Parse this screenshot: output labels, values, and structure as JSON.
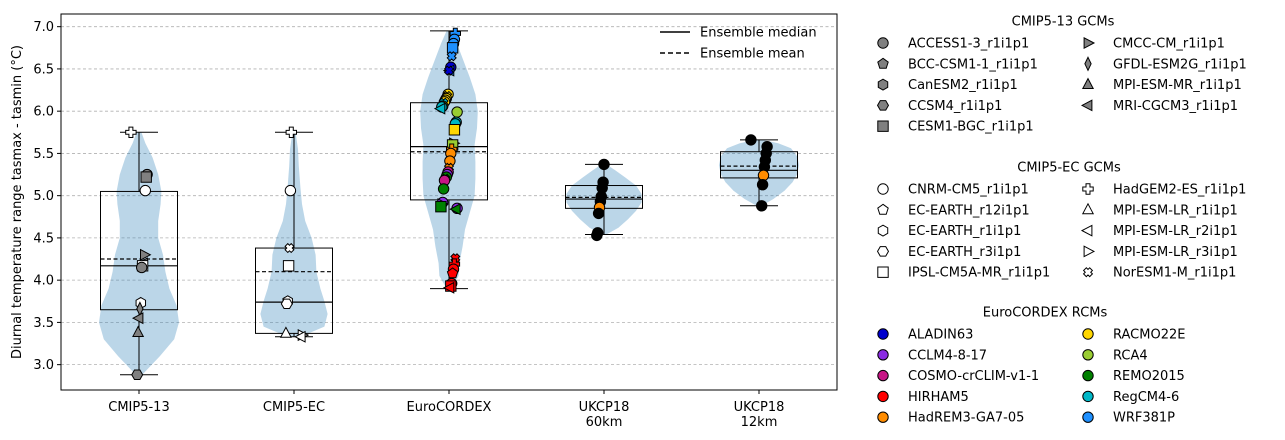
{
  "chart_data": {
    "type": "violin-box-scatter",
    "ylabel": "Diurnal temperature range tasmax - tasmin (°C)",
    "ylim": [
      2.7,
      7.15
    ],
    "yticks": [
      3.0,
      3.5,
      4.0,
      4.5,
      5.0,
      5.5,
      6.0,
      6.5,
      7.0
    ],
    "grid": "horizontal dashed",
    "categories": [
      "CMIP5-13",
      "CMIP5-EC",
      "EuroCORDEX",
      "UKCP18\n60km",
      "UKCP18\n12km"
    ],
    "summary_legend": [
      {
        "label": "Ensemble median",
        "style": "solid"
      },
      {
        "label": "Ensemble mean",
        "style": "dashed"
      }
    ],
    "groups": [
      {
        "name": "CMIP5-13",
        "min": 2.88,
        "q1": 3.65,
        "median": 4.17,
        "q3": 5.05,
        "max": 5.75,
        "mean": 4.25
      },
      {
        "name": "CMIP5-EC",
        "min": 3.33,
        "q1": 3.37,
        "median": 3.74,
        "q3": 4.38,
        "max": 5.75,
        "mean": 4.1
      },
      {
        "name": "EuroCORDEX",
        "min": 3.9,
        "q1": 4.95,
        "median": 5.58,
        "q3": 6.1,
        "max": 6.95,
        "mean": 5.52
      },
      {
        "name": "UKCP18 60km",
        "min": 4.54,
        "q1": 4.85,
        "median": 4.96,
        "q3": 5.12,
        "max": 5.37,
        "mean": 4.98
      },
      {
        "name": "UKCP18 12km",
        "min": 4.88,
        "q1": 5.21,
        "median": 5.3,
        "q3": 5.52,
        "max": 5.66,
        "mean": 5.35
      }
    ],
    "violins": [
      {
        "group": 0,
        "profile": [
          [
            2.88,
            0.04
          ],
          [
            3.1,
            0.26
          ],
          [
            3.3,
            0.44
          ],
          [
            3.5,
            0.5
          ],
          [
            3.7,
            0.47
          ],
          [
            3.9,
            0.38
          ],
          [
            4.1,
            0.33
          ],
          [
            4.3,
            0.3
          ],
          [
            4.5,
            0.24
          ],
          [
            4.7,
            0.24
          ],
          [
            4.9,
            0.27
          ],
          [
            5.05,
            0.28
          ],
          [
            5.25,
            0.24
          ],
          [
            5.45,
            0.17
          ],
          [
            5.62,
            0.08
          ],
          [
            5.75,
            0.03
          ]
        ]
      },
      {
        "group": 1,
        "profile": [
          [
            3.33,
            0.08
          ],
          [
            3.45,
            0.38
          ],
          [
            3.6,
            0.42
          ],
          [
            3.75,
            0.38
          ],
          [
            3.9,
            0.33
          ],
          [
            4.1,
            0.28
          ],
          [
            4.3,
            0.27
          ],
          [
            4.5,
            0.22
          ],
          [
            4.7,
            0.14
          ],
          [
            4.9,
            0.1
          ],
          [
            5.1,
            0.08
          ],
          [
            5.35,
            0.06
          ],
          [
            5.55,
            0.05
          ],
          [
            5.75,
            0.02
          ]
        ]
      },
      {
        "group": 2,
        "profile": [
          [
            3.9,
            0.03
          ],
          [
            4.05,
            0.12
          ],
          [
            4.2,
            0.13
          ],
          [
            4.4,
            0.17
          ],
          [
            4.6,
            0.2
          ],
          [
            4.8,
            0.26
          ],
          [
            5.0,
            0.32
          ],
          [
            5.2,
            0.33
          ],
          [
            5.4,
            0.33
          ],
          [
            5.6,
            0.32
          ],
          [
            5.8,
            0.35
          ],
          [
            6.0,
            0.36
          ],
          [
            6.2,
            0.33
          ],
          [
            6.4,
            0.26
          ],
          [
            6.6,
            0.18
          ],
          [
            6.8,
            0.1
          ],
          [
            6.95,
            0.03
          ]
        ]
      },
      {
        "group": 3,
        "profile": [
          [
            4.54,
            0.03
          ],
          [
            4.62,
            0.18
          ],
          [
            4.72,
            0.3
          ],
          [
            4.82,
            0.4
          ],
          [
            4.92,
            0.47
          ],
          [
            5.02,
            0.47
          ],
          [
            5.12,
            0.4
          ],
          [
            5.22,
            0.26
          ],
          [
            5.3,
            0.14
          ],
          [
            5.37,
            0.03
          ]
        ]
      },
      {
        "group": 4,
        "profile": [
          [
            4.88,
            0.03
          ],
          [
            4.96,
            0.18
          ],
          [
            5.06,
            0.32
          ],
          [
            5.16,
            0.42
          ],
          [
            5.26,
            0.48
          ],
          [
            5.36,
            0.5
          ],
          [
            5.46,
            0.48
          ],
          [
            5.56,
            0.4
          ],
          [
            5.62,
            0.24
          ],
          [
            5.66,
            0.04
          ]
        ]
      }
    ],
    "legend_sections": [
      {
        "title": "CMIP5-13 GCMs",
        "items": [
          {
            "label": "ACCESS1-3_r1i1p1",
            "marker": "circle",
            "color": "#808080"
          },
          {
            "label": "BCC-CSM1-1_r1i1p1",
            "marker": "pentagon",
            "color": "#808080"
          },
          {
            "label": "CanESM2_r1i1p1",
            "marker": "hexagon",
            "color": "#808080"
          },
          {
            "label": "CCSM4_r1i1p1",
            "marker": "hexagon2",
            "color": "#808080"
          },
          {
            "label": "CESM1-BGC_r1i1p1",
            "marker": "square",
            "color": "#808080"
          },
          {
            "label": "CMCC-CM_r1i1p1",
            "marker": "tri-right",
            "color": "#808080"
          },
          {
            "label": "GFDL-ESM2G_r1i1p1",
            "marker": "thin-diamond",
            "color": "#808080"
          },
          {
            "label": "MPI-ESM-MR_r1i1p1",
            "marker": "tri-up",
            "color": "#808080"
          },
          {
            "label": "MRI-CGCM3_r1i1p1",
            "marker": "tri-left",
            "color": "#808080"
          }
        ]
      },
      {
        "title": "CMIP5-EC GCMs",
        "items": [
          {
            "label": "CNRM-CM5_r1i1p1",
            "marker": "circle",
            "color": "#ffffff"
          },
          {
            "label": "EC-EARTH_r12i1p1",
            "marker": "pentagon",
            "color": "#ffffff"
          },
          {
            "label": "EC-EARTH_r1i1p1",
            "marker": "hexagon",
            "color": "#ffffff"
          },
          {
            "label": "EC-EARTH_r3i1p1",
            "marker": "hexagon2",
            "color": "#ffffff"
          },
          {
            "label": "IPSL-CM5A-MR_r1i1p1",
            "marker": "square",
            "color": "#ffffff"
          },
          {
            "label": "HadGEM2-ES_r1i1p1",
            "marker": "plus",
            "color": "#ffffff"
          },
          {
            "label": "MPI-ESM-LR_r1i1p1",
            "marker": "tri-up",
            "color": "#ffffff"
          },
          {
            "label": "MPI-ESM-LR_r2i1p1",
            "marker": "tri-left",
            "color": "#ffffff"
          },
          {
            "label": "MPI-ESM-LR_r3i1p1",
            "marker": "tri-right",
            "color": "#ffffff"
          },
          {
            "label": "NorESM1-M_r1i1p1",
            "marker": "x",
            "color": "#ffffff"
          }
        ]
      },
      {
        "title": "EuroCORDEX RCMs",
        "items": [
          {
            "label": "ALADIN63",
            "marker": "circle",
            "color": "#0000cd"
          },
          {
            "label": "CCLM4-8-17",
            "marker": "circle",
            "color": "#8a2be2"
          },
          {
            "label": "COSMO-crCLIM-v1-1",
            "marker": "circle",
            "color": "#c71585"
          },
          {
            "label": "HIRHAM5",
            "marker": "circle",
            "color": "#ff0000"
          },
          {
            "label": "HadREM3-GA7-05",
            "marker": "circle",
            "color": "#ff8c00"
          },
          {
            "label": "RACMO22E",
            "marker": "circle",
            "color": "#ffd700"
          },
          {
            "label": "RCA4",
            "marker": "circle",
            "color": "#9acd32"
          },
          {
            "label": "REMO2015",
            "marker": "circle",
            "color": "#008000"
          },
          {
            "label": "RegCM4-6",
            "marker": "circle",
            "color": "#00b7c7"
          },
          {
            "label": "WRF381P",
            "marker": "circle",
            "color": "#1e90ff"
          }
        ]
      }
    ],
    "points": [
      {
        "group": 0,
        "y": 5.75,
        "marker": "plus",
        "color": "#ffffff"
      },
      {
        "group": 0,
        "y": 5.25,
        "marker": "circle",
        "color": "#808080"
      },
      {
        "group": 0,
        "y": 5.22,
        "marker": "square",
        "color": "#808080"
      },
      {
        "group": 0,
        "y": 5.06,
        "marker": "circle",
        "color": "#ffffff"
      },
      {
        "group": 0,
        "y": 4.3,
        "marker": "tri-right",
        "color": "#808080"
      },
      {
        "group": 0,
        "y": 4.2,
        "marker": "tri-left",
        "color": "#808080"
      },
      {
        "group": 0,
        "y": 4.17,
        "marker": "square",
        "color": "#ffffff"
      },
      {
        "group": 0,
        "y": 4.15,
        "marker": "circle",
        "color": "#808080"
      },
      {
        "group": 0,
        "y": 3.73,
        "marker": "hexagon",
        "color": "#ffffff"
      },
      {
        "group": 0,
        "y": 3.66,
        "marker": "thin-diamond",
        "color": "#808080"
      },
      {
        "group": 0,
        "y": 3.55,
        "marker": "tri-left",
        "color": "#808080"
      },
      {
        "group": 0,
        "y": 3.38,
        "marker": "tri-up",
        "color": "#808080"
      },
      {
        "group": 0,
        "y": 2.88,
        "marker": "hexagon2",
        "color": "#808080"
      },
      {
        "group": 1,
        "y": 5.75,
        "marker": "plus",
        "color": "#ffffff"
      },
      {
        "group": 1,
        "y": 5.06,
        "marker": "circle",
        "color": "#ffffff"
      },
      {
        "group": 1,
        "y": 4.38,
        "marker": "x",
        "color": "#ffffff"
      },
      {
        "group": 1,
        "y": 4.17,
        "marker": "square",
        "color": "#ffffff"
      },
      {
        "group": 1,
        "y": 3.75,
        "marker": "hexagon",
        "color": "#ffffff"
      },
      {
        "group": 1,
        "y": 3.72,
        "marker": "hexagon2",
        "color": "#ffffff"
      },
      {
        "group": 1,
        "y": 3.37,
        "marker": "tri-up",
        "color": "#ffffff"
      },
      {
        "group": 1,
        "y": 3.35,
        "marker": "tri-right",
        "color": "#ffffff"
      },
      {
        "group": 1,
        "y": 3.33,
        "marker": "tri-left",
        "color": "#ffffff"
      },
      {
        "group": 2,
        "y": 6.92,
        "marker": "plus",
        "color": "#1e90ff"
      },
      {
        "group": 2,
        "y": 6.85,
        "marker": "circle",
        "color": "#1e90ff"
      },
      {
        "group": 2,
        "y": 6.8,
        "marker": "circle",
        "color": "#1e90ff"
      },
      {
        "group": 2,
        "y": 6.75,
        "marker": "square",
        "color": "#1e90ff"
      },
      {
        "group": 2,
        "y": 6.65,
        "marker": "x",
        "color": "#1e90ff"
      },
      {
        "group": 2,
        "y": 6.52,
        "marker": "circle",
        "color": "#0000cd"
      },
      {
        "group": 2,
        "y": 6.48,
        "marker": "tri-left",
        "color": "#1e90ff"
      },
      {
        "group": 2,
        "y": 6.48,
        "marker": "x",
        "color": "#0000cd"
      },
      {
        "group": 2,
        "y": 6.2,
        "marker": "circle",
        "color": "#ffd700"
      },
      {
        "group": 2,
        "y": 6.18,
        "marker": "x",
        "color": "#ffd700"
      },
      {
        "group": 2,
        "y": 6.15,
        "marker": "circle",
        "color": "#ffd700"
      },
      {
        "group": 2,
        "y": 6.13,
        "marker": "circle",
        "color": "#ffd700"
      },
      {
        "group": 2,
        "y": 6.11,
        "marker": "circle",
        "color": "#ffd700"
      },
      {
        "group": 2,
        "y": 6.1,
        "marker": "x",
        "color": "#00b7c7"
      },
      {
        "group": 2,
        "y": 6.06,
        "marker": "circle",
        "color": "#9acd32"
      },
      {
        "group": 2,
        "y": 6.05,
        "marker": "circle",
        "color": "#00b7c7"
      },
      {
        "group": 2,
        "y": 6.03,
        "marker": "tri-left",
        "color": "#00b7c7"
      },
      {
        "group": 2,
        "y": 5.99,
        "marker": "circle",
        "color": "#9acd32"
      },
      {
        "group": 2,
        "y": 5.87,
        "marker": "circle",
        "color": "#00b7c7"
      },
      {
        "group": 2,
        "y": 5.85,
        "marker": "circle",
        "color": "#00b7c7"
      },
      {
        "group": 2,
        "y": 5.78,
        "marker": "square",
        "color": "#ffd700"
      },
      {
        "group": 2,
        "y": 5.62,
        "marker": "tri-right",
        "color": "#9acd32"
      },
      {
        "group": 2,
        "y": 5.6,
        "marker": "square",
        "color": "#9acd32"
      },
      {
        "group": 2,
        "y": 5.55,
        "marker": "plus",
        "color": "#ff8c00"
      },
      {
        "group": 2,
        "y": 5.5,
        "marker": "circle",
        "color": "#ff8c00"
      },
      {
        "group": 2,
        "y": 5.41,
        "marker": "circle",
        "color": "#ff8c00"
      },
      {
        "group": 2,
        "y": 5.33,
        "marker": "x",
        "color": "#ff8c00"
      },
      {
        "group": 2,
        "y": 5.28,
        "marker": "circle",
        "color": "#c71585"
      },
      {
        "group": 2,
        "y": 5.25,
        "marker": "circle",
        "color": "#8a2be2"
      },
      {
        "group": 2,
        "y": 5.22,
        "marker": "circle",
        "color": "#008000"
      },
      {
        "group": 2,
        "y": 5.2,
        "marker": "x",
        "color": "#008000"
      },
      {
        "group": 2,
        "y": 5.18,
        "marker": "circle",
        "color": "#c71585"
      },
      {
        "group": 2,
        "y": 5.08,
        "marker": "circle",
        "color": "#008000"
      },
      {
        "group": 2,
        "y": 4.92,
        "marker": "circle",
        "color": "#8a2be2"
      },
      {
        "group": 2,
        "y": 4.9,
        "marker": "tri-right",
        "color": "#8a2be2"
      },
      {
        "group": 2,
        "y": 4.87,
        "marker": "square",
        "color": "#008000"
      },
      {
        "group": 2,
        "y": 4.85,
        "marker": "circle",
        "color": "#8a2be2"
      },
      {
        "group": 2,
        "y": 4.84,
        "marker": "tri-left",
        "color": "#008000"
      },
      {
        "group": 2,
        "y": 4.26,
        "marker": "x",
        "color": "#ff0000"
      },
      {
        "group": 2,
        "y": 4.19,
        "marker": "plus",
        "color": "#ff0000"
      },
      {
        "group": 2,
        "y": 4.13,
        "marker": "circle",
        "color": "#ff0000"
      },
      {
        "group": 2,
        "y": 4.08,
        "marker": "pentagon",
        "color": "#ff0000"
      },
      {
        "group": 2,
        "y": 3.96,
        "marker": "circle",
        "color": "#ff0000"
      },
      {
        "group": 2,
        "y": 3.93,
        "marker": "square",
        "color": "#ff0000"
      },
      {
        "group": 2,
        "y": 3.91,
        "marker": "tri-left",
        "color": "#ff0000"
      },
      {
        "group": 3,
        "y": 5.37,
        "marker": "circle",
        "color": "#000000"
      },
      {
        "group": 3,
        "y": 5.16,
        "marker": "circle",
        "color": "#000000"
      },
      {
        "group": 3,
        "y": 5.09,
        "marker": "circle",
        "color": "#000000"
      },
      {
        "group": 3,
        "y": 4.99,
        "marker": "circle",
        "color": "#000000"
      },
      {
        "group": 3,
        "y": 4.93,
        "marker": "circle",
        "color": "#000000"
      },
      {
        "group": 3,
        "y": 4.86,
        "marker": "circle",
        "color": "#ff8c00"
      },
      {
        "group": 3,
        "y": 4.79,
        "marker": "circle",
        "color": "#000000"
      },
      {
        "group": 3,
        "y": 4.56,
        "marker": "circle",
        "color": "#000000"
      },
      {
        "group": 3,
        "y": 4.53,
        "marker": "circle",
        "color": "#000000"
      },
      {
        "group": 4,
        "y": 5.66,
        "marker": "circle",
        "color": "#000000"
      },
      {
        "group": 4,
        "y": 5.58,
        "marker": "circle",
        "color": "#000000"
      },
      {
        "group": 4,
        "y": 5.5,
        "marker": "circle",
        "color": "#000000"
      },
      {
        "group": 4,
        "y": 5.42,
        "marker": "circle",
        "color": "#000000"
      },
      {
        "group": 4,
        "y": 5.34,
        "marker": "circle",
        "color": "#000000"
      },
      {
        "group": 4,
        "y": 5.24,
        "marker": "circle",
        "color": "#ff8c00"
      },
      {
        "group": 4,
        "y": 5.13,
        "marker": "circle",
        "color": "#000000"
      },
      {
        "group": 4,
        "y": 4.88,
        "marker": "circle",
        "color": "#000000"
      }
    ]
  }
}
